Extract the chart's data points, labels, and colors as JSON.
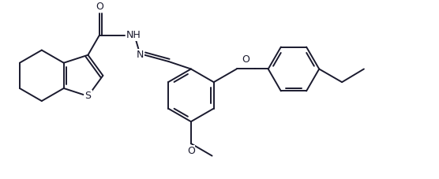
{
  "background_color": "#ffffff",
  "line_color": "#1a1a2e",
  "line_width": 1.4,
  "font_size": 8.5,
  "figsize": [
    5.56,
    2.27
  ],
  "dpi": 100,
  "xlim": [
    0,
    10
  ],
  "ylim": [
    0,
    4.0
  ]
}
